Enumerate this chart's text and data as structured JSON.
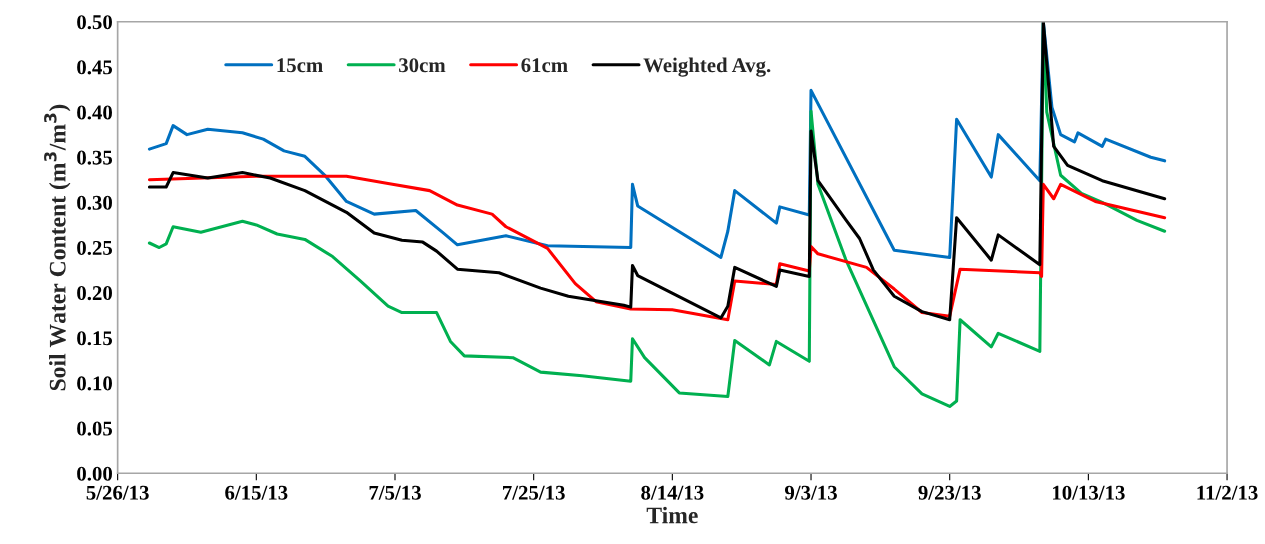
{
  "chart_data": {
    "type": "line",
    "xlabel": "Time",
    "ylabel": "Soil Water Content (m$^{3}$/m$^{3}$)",
    "xlim": [
      "2013-05-26",
      "2013-11-02"
    ],
    "xticks": [
      {
        "value": "2013-05-26",
        "label": "5/26/13"
      },
      {
        "value": "2013-06-15",
        "label": "6/15/13"
      },
      {
        "value": "2013-07-05",
        "label": "7/5/13"
      },
      {
        "value": "2013-07-25",
        "label": "7/25/13"
      },
      {
        "value": "2013-08-14",
        "label": "8/14/13"
      },
      {
        "value": "2013-09-03",
        "label": "9/3/13"
      },
      {
        "value": "2013-09-23",
        "label": "9/23/13"
      },
      {
        "value": "2013-10-13",
        "label": "10/13/13"
      },
      {
        "value": "2013-11-02",
        "label": "11/2/13"
      }
    ],
    "ylim": [
      0,
      0.5
    ],
    "yticks": [
      {
        "value": 0,
        "label": "0.00"
      },
      {
        "value": 0.05,
        "label": "0.05"
      },
      {
        "value": 0.1,
        "label": "0.10"
      },
      {
        "value": 0.15,
        "label": "0.15"
      },
      {
        "value": 0.2,
        "label": "0.20"
      },
      {
        "value": 0.25,
        "label": "0.25"
      },
      {
        "value": 0.3,
        "label": "0.30"
      },
      {
        "value": 0.35,
        "label": "0.35"
      },
      {
        "value": 0.4,
        "label": "0.40"
      },
      {
        "value": 0.45,
        "label": "0.45"
      },
      {
        "value": 0.5,
        "label": "0.50"
      }
    ],
    "grid": false,
    "legend": "top left",
    "marker": "none",
    "line_style": "solid",
    "series": [
      {
        "name": "15cm",
        "color": "#0070c0",
        "x": [
          "2013-05-30T14:00",
          "2013-06-02",
          "2013-06-03",
          "2013-06-05",
          "2013-06-08",
          "2013-06-13",
          "2013-06-16",
          "2013-06-19",
          "2013-06-22",
          "2013-06-25",
          "2013-06-28",
          "2013-07-02",
          "2013-07-08",
          "2013-07-12",
          "2013-07-14",
          "2013-07-21",
          "2013-07-27",
          "2013-08-08",
          "2013-08-08T06:00",
          "2013-08-09",
          "2013-08-21",
          "2013-08-22",
          "2013-08-23",
          "2013-08-29",
          "2013-08-29T12:00",
          "2013-09-02T18:00",
          "2013-09-03",
          "2013-09-15",
          "2013-09-23",
          "2013-09-24",
          "2013-09-29",
          "2013-09-30",
          "2013-10-06",
          "2013-10-06T12:00",
          "2013-10-07T18:00",
          "2013-10-09",
          "2013-10-11",
          "2013-10-11T12:00",
          "2013-10-15",
          "2013-10-15T12:00",
          "2013-10-22",
          "2013-10-24"
        ],
        "values": [
          0.359,
          0.365,
          0.385,
          0.375,
          0.381,
          0.377,
          0.37,
          0.357,
          0.351,
          0.329,
          0.301,
          0.287,
          0.291,
          0.266,
          0.253,
          0.263,
          0.252,
          0.25,
          0.32,
          0.296,
          0.239,
          0.268,
          0.313,
          0.277,
          0.295,
          0.286,
          0.424,
          0.247,
          0.239,
          0.392,
          0.328,
          0.375,
          0.324,
          0.5,
          0.405,
          0.375,
          0.367,
          0.377,
          0.362,
          0.37,
          0.35,
          0.346
        ]
      },
      {
        "name": "30cm",
        "color": "#00b050",
        "x": [
          "2013-05-30T14:00",
          "2013-06-01",
          "2013-06-02",
          "2013-06-03",
          "2013-06-07",
          "2013-06-13",
          "2013-06-15",
          "2013-06-18",
          "2013-06-22",
          "2013-06-26",
          "2013-06-30",
          "2013-07-04",
          "2013-07-06",
          "2013-07-11",
          "2013-07-13",
          "2013-07-15",
          "2013-07-22",
          "2013-07-26",
          "2013-08-01",
          "2013-08-08",
          "2013-08-08T06:00",
          "2013-08-10",
          "2013-08-15",
          "2013-08-22",
          "2013-08-23",
          "2013-08-28",
          "2013-08-29",
          "2013-09-02T18:00",
          "2013-09-03",
          "2013-09-04",
          "2013-09-08",
          "2013-09-11",
          "2013-09-15",
          "2013-09-19",
          "2013-09-23",
          "2013-09-24",
          "2013-09-24T12:00",
          "2013-09-29",
          "2013-09-30",
          "2013-10-06",
          "2013-10-06T12:00",
          "2013-10-07",
          "2013-10-09",
          "2013-10-12",
          "2013-10-15",
          "2013-10-20",
          "2013-10-24"
        ],
        "values": [
          0.255,
          0.25,
          0.254,
          0.273,
          0.267,
          0.279,
          0.275,
          0.265,
          0.259,
          0.24,
          0.213,
          0.185,
          0.178,
          0.178,
          0.146,
          0.13,
          0.128,
          0.112,
          0.108,
          0.102,
          0.149,
          0.128,
          0.089,
          0.085,
          0.147,
          0.12,
          0.146,
          0.124,
          0.401,
          0.32,
          0.237,
          0.186,
          0.118,
          0.088,
          0.074,
          0.08,
          0.17,
          0.14,
          0.155,
          0.135,
          0.5,
          0.4,
          0.33,
          0.31,
          0.3,
          0.28,
          0.268
        ]
      },
      {
        "name": "61cm",
        "color": "#ff0000",
        "x": [
          "2013-05-30T14:00",
          "2013-06-15",
          "2013-06-28",
          "2013-07-04",
          "2013-07-10",
          "2013-07-14",
          "2013-07-19",
          "2013-07-21",
          "2013-07-27",
          "2013-07-31",
          "2013-08-03",
          "2013-08-08",
          "2013-08-14",
          "2013-08-22",
          "2013-08-23",
          "2013-08-29",
          "2013-08-29T12:00",
          "2013-09-02T18:00",
          "2013-09-03",
          "2013-09-04",
          "2013-09-11",
          "2013-09-15",
          "2013-09-19",
          "2013-09-23",
          "2013-09-24T12:00",
          "2013-10-06",
          "2013-10-06T06:00",
          "2013-10-06T12:00",
          "2013-10-08",
          "2013-10-09",
          "2013-10-14",
          "2013-10-24"
        ],
        "values": [
          0.325,
          0.329,
          0.329,
          0.321,
          0.313,
          0.297,
          0.287,
          0.273,
          0.249,
          0.21,
          0.19,
          0.182,
          0.181,
          0.17,
          0.213,
          0.209,
          0.232,
          0.224,
          0.251,
          0.243,
          0.228,
          0.204,
          0.178,
          0.174,
          0.226,
          0.222,
          0.218,
          0.32,
          0.304,
          0.32,
          0.301,
          0.283
        ]
      },
      {
        "name": "Weighted Avg.",
        "color": "#000000",
        "x": [
          "2013-05-30T14:00",
          "2013-06-02",
          "2013-06-03",
          "2013-06-08",
          "2013-06-13",
          "2013-06-17",
          "2013-06-22",
          "2013-06-28",
          "2013-07-02",
          "2013-07-06",
          "2013-07-09",
          "2013-07-11",
          "2013-07-14",
          "2013-07-20",
          "2013-07-26",
          "2013-07-30",
          "2013-08-07",
          "2013-08-08",
          "2013-08-08T06:00",
          "2013-08-09",
          "2013-08-21",
          "2013-08-22",
          "2013-08-23",
          "2013-08-29",
          "2013-08-29T12:00",
          "2013-09-02T18:00",
          "2013-09-03",
          "2013-09-04",
          "2013-09-08",
          "2013-09-10",
          "2013-09-12",
          "2013-09-15",
          "2013-09-19",
          "2013-09-23",
          "2013-09-24",
          "2013-09-29",
          "2013-09-30",
          "2013-10-06",
          "2013-10-06T12:00",
          "2013-10-08",
          "2013-10-10",
          "2013-10-15",
          "2013-10-24"
        ],
        "values": [
          0.317,
          0.317,
          0.333,
          0.327,
          0.333,
          0.327,
          0.313,
          0.289,
          0.266,
          0.258,
          0.256,
          0.246,
          0.226,
          0.222,
          0.205,
          0.196,
          0.186,
          0.184,
          0.23,
          0.219,
          0.172,
          0.185,
          0.228,
          0.207,
          0.225,
          0.218,
          0.379,
          0.324,
          0.281,
          0.26,
          0.225,
          0.196,
          0.179,
          0.17,
          0.283,
          0.236,
          0.264,
          0.231,
          0.5,
          0.362,
          0.341,
          0.324,
          0.304
        ]
      }
    ]
  }
}
